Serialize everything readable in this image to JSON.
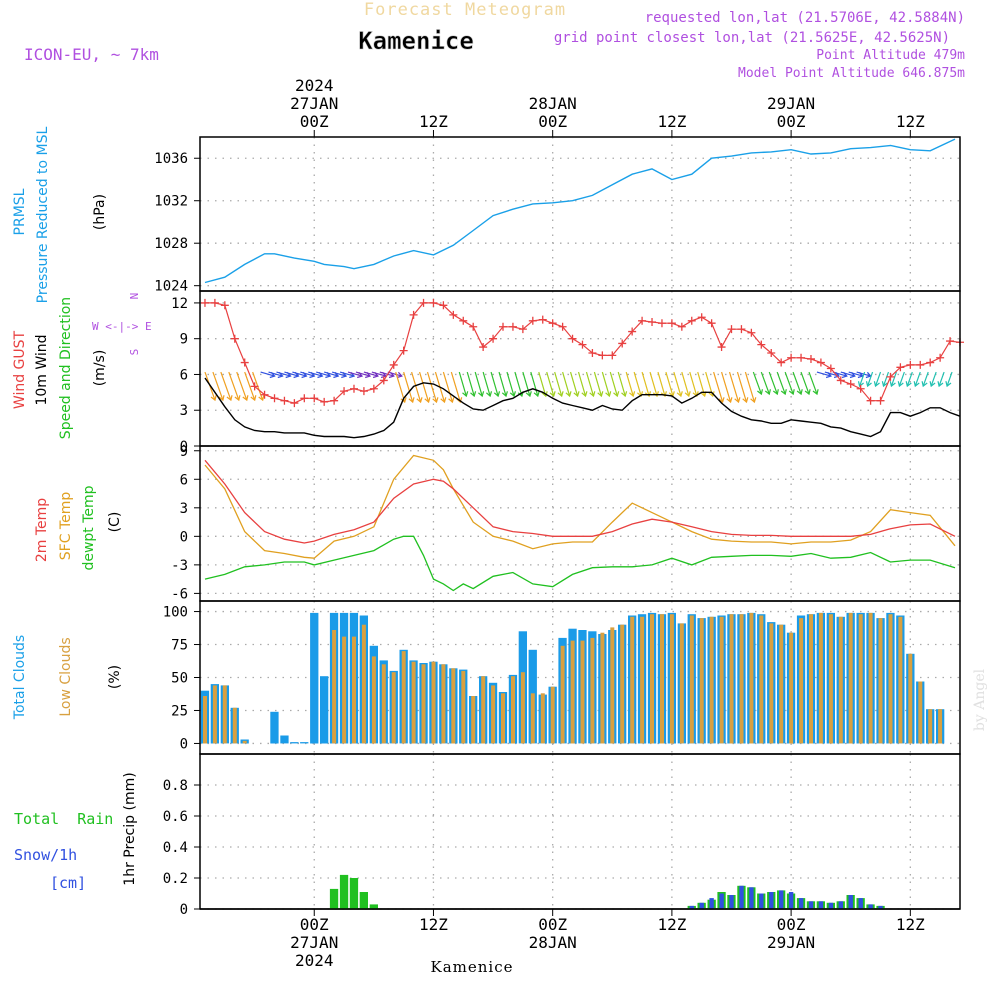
{
  "header": {
    "title": "Forecast Meteogram",
    "location": "Kamenice",
    "model": "ICON-EU, ~ 7km",
    "requested": "requested lon,lat (21.5706E, 42.5884N)",
    "grid_point": "grid point closest lon,lat (21.5625E, 42.5625N)",
    "point_alt": "Point Altitude 479m",
    "model_alt": "Model Point Altitude 646.875m",
    "footer": "Kamenice",
    "watermark": "by Angel"
  },
  "colors": {
    "pressure": "#1aa0e8",
    "gust": "#e84040",
    "wind": "#000000",
    "temp2m": "#e84040",
    "sfc": "#e0a020",
    "dewpt": "#20c020",
    "total_cloud": "#1a9be8",
    "low_cloud": "#d8a040",
    "rain": "#20c020",
    "snow": "#3050e0",
    "title_pale": "#f0d8a0",
    "purple": "#b050e0"
  },
  "axes": {
    "top_labels": [
      {
        "lines": [
          "2024",
          "27JAN",
          "00Z"
        ]
      },
      {
        "lines": [
          "12Z"
        ]
      },
      {
        "lines": [
          "28JAN",
          "00Z"
        ]
      },
      {
        "lines": [
          "12Z"
        ]
      },
      {
        "lines": [
          "29JAN",
          "00Z"
        ]
      },
      {
        "lines": [
          "12Z"
        ]
      }
    ],
    "bottom_labels": [
      {
        "lines": [
          "00Z",
          "27JAN",
          "2024"
        ]
      },
      {
        "lines": [
          "12Z"
        ]
      },
      {
        "lines": [
          "00Z",
          "28JAN"
        ]
      },
      {
        "lines": [
          "12Z"
        ]
      },
      {
        "lines": [
          "00Z",
          "29JAN"
        ]
      },
      {
        "lines": [
          "12Z"
        ]
      }
    ],
    "x_hours": [
      0,
      12,
      24,
      36,
      48,
      60
    ],
    "x_range": [
      -11.5,
      65
    ]
  },
  "panels": {
    "pressure": {
      "label1": "PRMSL",
      "label2": "Pressure Reduced to MSL",
      "unit": "(hPa)",
      "ticks": [
        "1024",
        "1028",
        "1032",
        "1036"
      ]
    },
    "wind": {
      "label_gust": "Wind GUST",
      "label_wind": "10m Wind",
      "label_dir": "Speed and Direction",
      "unit": "(m/s)",
      "compass": [
        "W <-|-> E",
        "N",
        "S"
      ],
      "ticks": [
        "0",
        "3",
        "6",
        "9",
        "12"
      ]
    },
    "temp": {
      "label1": "2m Temp",
      "label2": "SFC Temp",
      "label3": "dewpt Temp",
      "unit": "(C)",
      "ticks": [
        "-6",
        "-3",
        "0",
        "3",
        "6",
        "9"
      ]
    },
    "clouds": {
      "label1": "Total Clouds",
      "label2": "Low Clouds",
      "unit": "(%)",
      "ticks": [
        "0",
        "25",
        "50",
        "75",
        "100"
      ]
    },
    "precip": {
      "label_rain": "Total  Rain",
      "label_snow": "Snow/1h",
      "label_cm": "[cm]",
      "unit": "1hr Precip (mm)",
      "ticks": [
        "0",
        "0.2",
        "0.4",
        "0.6",
        "0.8"
      ]
    }
  },
  "chart_data": [
    {
      "type": "line",
      "title": "PRMSL Pressure Reduced to MSL",
      "ylabel": "(hPa)",
      "ylim": [
        1023.5,
        1038
      ],
      "series": [
        {
          "name": "PRMSL",
          "x": [
            -11,
            -9,
            -7,
            -5,
            -4,
            -2,
            0,
            1,
            3,
            4,
            6,
            8,
            10,
            12,
            14,
            16,
            18,
            20,
            22,
            24,
            26,
            28,
            30,
            32,
            34,
            36,
            38,
            40,
            42,
            44,
            46,
            48,
            50,
            52,
            54,
            56,
            58,
            60,
            62,
            64.5
          ],
          "y": [
            1024.3,
            1024.8,
            1026,
            1027,
            1027,
            1026.6,
            1026.3,
            1026,
            1025.8,
            1025.6,
            1026,
            1026.8,
            1027.3,
            1026.9,
            1027.8,
            1029.2,
            1030.6,
            1031.2,
            1031.7,
            1031.8,
            1032,
            1032.5,
            1033.5,
            1034.5,
            1035,
            1034,
            1034.5,
            1036,
            1036.2,
            1036.5,
            1036.6,
            1036.8,
            1036.4,
            1036.5,
            1036.9,
            1037,
            1037.2,
            1036.8,
            1036.7,
            1037.8
          ]
        }
      ]
    },
    {
      "type": "line",
      "title": "Wind GUST / 10m Wind Speed and Direction",
      "ylabel": "(m/s)",
      "ylim": [
        0,
        13
      ],
      "series": [
        {
          "name": "Wind GUST",
          "x": [
            -11,
            -10,
            -9,
            -8,
            -7,
            -6,
            -5,
            -4,
            -3,
            -2,
            -1,
            0,
            1,
            2,
            3,
            4,
            5,
            6,
            7,
            8,
            9,
            10,
            11,
            12,
            13,
            14,
            15,
            16,
            17,
            18,
            19,
            20,
            21,
            22,
            23,
            24,
            25,
            26,
            27,
            28,
            29,
            30,
            31,
            32,
            33,
            34,
            35,
            36,
            37,
            38,
            39,
            40,
            41,
            42,
            43,
            44,
            45,
            46,
            47,
            48,
            49,
            50,
            51,
            52,
            53,
            54,
            55,
            56,
            57,
            58,
            59,
            60,
            61,
            62,
            63,
            64,
            65
          ],
          "y": [
            12,
            12,
            11.8,
            9,
            7,
            5,
            4.3,
            4,
            3.8,
            3.6,
            4,
            4,
            3.7,
            3.8,
            4.6,
            4.8,
            4.6,
            4.8,
            5.5,
            6.8,
            8,
            11,
            12,
            12,
            11.8,
            11,
            10.5,
            10,
            8.3,
            9,
            10,
            10,
            9.8,
            10.5,
            10.6,
            10.3,
            10,
            9,
            8.5,
            7.8,
            7.6,
            7.6,
            8.6,
            9.6,
            10.5,
            10.4,
            10.3,
            10.3,
            10,
            10.5,
            10.8,
            10.3,
            8.3,
            9.8,
            9.8,
            9.5,
            8.5,
            7.8,
            7,
            7.4,
            7.4,
            7.3,
            7,
            6.5,
            5.5,
            5.2,
            4.8,
            3.8,
            3.8,
            5.8,
            6.6,
            6.8,
            6.8,
            7,
            7.4,
            8.8,
            8.7
          ]
        },
        {
          "name": "10m Wind",
          "x": [
            -11,
            -10,
            -9,
            -8,
            -7,
            -6,
            -5,
            -4,
            -3,
            -2,
            -1,
            0,
            1,
            2,
            3,
            4,
            5,
            6,
            7,
            8,
            9,
            10,
            11,
            12,
            13,
            14,
            15,
            16,
            17,
            18,
            19,
            20,
            21,
            22,
            23,
            24,
            25,
            26,
            27,
            28,
            29,
            30,
            31,
            32,
            33,
            34,
            35,
            36,
            37,
            38,
            39,
            40,
            41,
            42,
            43,
            44,
            45,
            46,
            47,
            48,
            49,
            50,
            51,
            52,
            53,
            54,
            55,
            56,
            57,
            58,
            59,
            60,
            61,
            62,
            63,
            64,
            65
          ],
          "y": [
            5.7,
            4.5,
            3.3,
            2.2,
            1.6,
            1.3,
            1.2,
            1.2,
            1.1,
            1.1,
            1.1,
            0.9,
            0.8,
            0.8,
            0.8,
            0.7,
            0.8,
            1,
            1.3,
            2,
            4,
            5,
            5.3,
            5.2,
            4.8,
            4.2,
            3.6,
            3.1,
            3,
            3.4,
            3.8,
            4,
            4.5,
            4.8,
            4.5,
            4,
            3.6,
            3.4,
            3.2,
            3,
            3.4,
            3.1,
            3,
            3.8,
            4.3,
            4.3,
            4.3,
            4.2,
            3.6,
            4,
            4.5,
            4.5,
            3.6,
            2.9,
            2.5,
            2.2,
            2.1,
            1.9,
            1.9,
            2.2,
            2.1,
            2,
            1.9,
            1.6,
            1.5,
            1.2,
            1,
            0.8,
            1.2,
            2.8,
            2.8,
            2.5,
            2.8,
            3.2,
            3.2,
            2.8,
            2.5
          ]
        }
      ]
    },
    {
      "type": "line",
      "title": "2m Temp / SFC Temp / dewpt Temp",
      "ylabel": "(C)",
      "ylim": [
        -6.8,
        9.5
      ],
      "series": [
        {
          "name": "2m Temp",
          "x": [
            -11,
            -9,
            -7,
            -5,
            -3,
            -1,
            0,
            2,
            4,
            6,
            8,
            10,
            12,
            13,
            14,
            16,
            18,
            20,
            22,
            24,
            26,
            28,
            30,
            32,
            34,
            36,
            38,
            40,
            42,
            44,
            46,
            48,
            50,
            52,
            54,
            56,
            58,
            60,
            62,
            64.5
          ],
          "y": [
            8,
            5.5,
            2.5,
            0.5,
            -0.3,
            -0.7,
            -0.5,
            0.2,
            0.7,
            1.5,
            4,
            5.5,
            6,
            5.8,
            5,
            3,
            1,
            0.5,
            0.3,
            0,
            0,
            0,
            0.5,
            1.3,
            1.8,
            1.5,
            1,
            0.5,
            0.2,
            0.1,
            0.1,
            0,
            0,
            0,
            0,
            0.2,
            0.8,
            1.2,
            1.3,
            0
          ]
        },
        {
          "name": "SFC Temp",
          "x": [
            -11,
            -9,
            -7,
            -5,
            -3,
            -1,
            0,
            2,
            4,
            6,
            8,
            10,
            12,
            13,
            14,
            16,
            18,
            20,
            22,
            24,
            26,
            28,
            30,
            32,
            34,
            36,
            38,
            40,
            42,
            44,
            46,
            48,
            50,
            52,
            54,
            56,
            58,
            60,
            62,
            64.5
          ],
          "y": [
            7.5,
            5,
            0.5,
            -1.5,
            -1.8,
            -2.2,
            -2.3,
            -0.5,
            0,
            1,
            6,
            8.5,
            8,
            7,
            5,
            1.5,
            0,
            -0.5,
            -1.3,
            -0.8,
            -0.6,
            -0.6,
            1.5,
            3.5,
            2.5,
            1.5,
            0.5,
            -0.3,
            -0.5,
            -0.6,
            -0.6,
            -0.8,
            -0.6,
            -0.6,
            -0.4,
            0.5,
            2.8,
            2.5,
            2.2,
            -1
          ]
        },
        {
          "name": "dewpt Temp",
          "x": [
            -11,
            -9,
            -7,
            -5,
            -3,
            -1,
            0,
            2,
            4,
            6,
            8,
            9,
            10,
            11,
            12,
            13,
            14,
            15,
            16,
            18,
            20,
            22,
            24,
            26,
            28,
            30,
            32,
            34,
            36,
            38,
            40,
            42,
            44,
            46,
            48,
            50,
            52,
            54,
            56,
            58,
            60,
            62,
            64.5
          ],
          "y": [
            -4.5,
            -4,
            -3.2,
            -3,
            -2.7,
            -2.7,
            -3,
            -2.5,
            -2,
            -1.5,
            -0.3,
            0,
            0,
            -2,
            -4.5,
            -5,
            -5.7,
            -5,
            -5.5,
            -4.2,
            -3.8,
            -5,
            -5.3,
            -4,
            -3.3,
            -3.2,
            -3.2,
            -3,
            -2.3,
            -3,
            -2.2,
            -2.1,
            -2,
            -2,
            -2.1,
            -1.8,
            -2.3,
            -2.2,
            -1.7,
            -2.7,
            -2.5,
            -2.5,
            -3.3
          ]
        }
      ]
    },
    {
      "type": "bar",
      "title": "Total Clouds / Low Clouds",
      "ylabel": "(%)",
      "ylim": [
        -8,
        108
      ],
      "x_start": -11,
      "series": [
        {
          "name": "Total Clouds",
          "values": [
            40,
            45,
            44,
            27,
            3,
            0,
            0,
            24,
            6,
            1,
            1,
            99,
            51,
            99,
            99,
            99,
            97,
            74,
            63,
            55,
            71,
            63,
            61,
            62,
            60,
            57,
            56,
            36,
            51,
            46,
            39,
            52,
            85,
            71,
            37,
            43,
            80,
            87,
            86,
            85,
            83,
            86,
            90,
            97,
            98,
            99,
            98,
            99,
            91,
            98,
            95,
            96,
            97,
            98,
            98,
            99,
            98,
            92,
            90,
            84,
            97,
            98,
            99,
            99,
            96,
            99,
            99,
            99,
            95,
            99,
            97,
            68,
            47,
            26,
            26
          ]
        },
        {
          "name": "Low Clouds",
          "values": [
            36,
            44,
            44,
            27,
            2,
            0,
            0,
            0,
            0,
            0,
            0,
            0,
            0,
            86,
            81,
            81,
            90,
            66,
            60,
            54,
            70,
            62,
            60,
            62,
            60,
            57,
            55,
            36,
            51,
            44,
            38,
            51,
            54,
            38,
            38,
            43,
            74,
            78,
            78,
            80,
            84,
            88,
            90,
            96,
            96,
            98,
            98,
            98,
            91,
            97,
            95,
            96,
            96,
            98,
            98,
            99,
            97,
            91,
            90,
            84,
            95,
            98,
            99,
            98,
            96,
            99,
            98,
            99,
            95,
            98,
            96,
            68,
            47,
            26,
            26
          ]
        }
      ]
    },
    {
      "type": "bar",
      "title": "1hr Precip",
      "ylabel": "1hr Precip (mm)",
      "ylim": [
        0,
        1
      ],
      "series": [
        {
          "name": "Total Rain",
          "x": [
            2,
            3,
            4,
            5,
            6,
            38,
            39,
            40,
            41,
            42,
            43,
            44,
            45,
            46,
            47,
            48,
            49,
            50,
            51,
            52,
            53,
            54,
            55,
            56,
            57
          ],
          "values": [
            0.13,
            0.22,
            0.2,
            0.11,
            0.03,
            0.02,
            0.04,
            0.06,
            0.11,
            0.09,
            0.15,
            0.14,
            0.1,
            0.11,
            0.12,
            0.1,
            0.07,
            0.05,
            0.05,
            0.04,
            0.05,
            0.09,
            0.07,
            0.03,
            0.02
          ]
        },
        {
          "name": "Snow/1h",
          "x": [
            38,
            39,
            40,
            41,
            42,
            43,
            44,
            45,
            46,
            47,
            48,
            49,
            50,
            51,
            52,
            53,
            54,
            55,
            56,
            57
          ],
          "values": [
            0.02,
            0.04,
            0.07,
            0.1,
            0.09,
            0.15,
            0.14,
            0.1,
            0.11,
            0.12,
            0.11,
            0.07,
            0.05,
            0.05,
            0.04,
            0.05,
            0.09,
            0.07,
            0.03,
            0.02
          ]
        }
      ]
    }
  ]
}
